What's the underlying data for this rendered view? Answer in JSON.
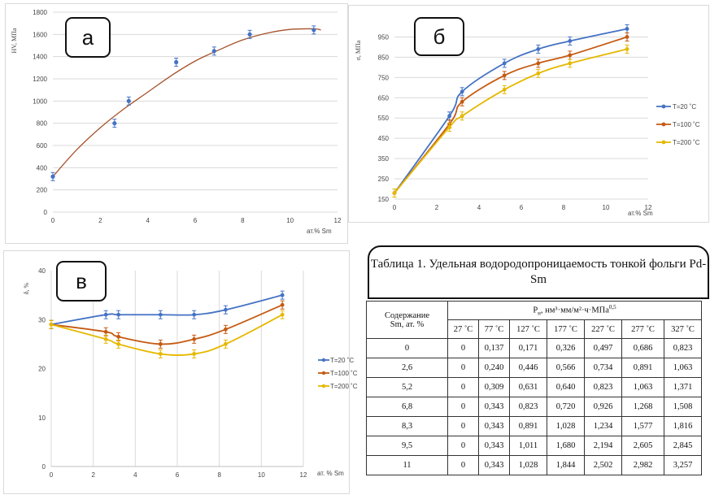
{
  "chart_data": [
    {
      "type": "scatter",
      "panel_tag": "а",
      "ylabel": "HV, МПа",
      "xlabel": "ат.% Sm",
      "xlim": [
        0,
        12
      ],
      "ylim": [
        0,
        1800
      ],
      "xticks": [
        0,
        2,
        4,
        6,
        8,
        10,
        12
      ],
      "yticks": [
        0,
        200,
        400,
        600,
        800,
        1000,
        1200,
        1400,
        1600,
        1800
      ],
      "points": [
        {
          "x": 0,
          "y": 320
        },
        {
          "x": 2.6,
          "y": 800
        },
        {
          "x": 3.2,
          "y": 1000
        },
        {
          "x": 5.2,
          "y": 1350
        },
        {
          "x": 6.8,
          "y": 1450
        },
        {
          "x": 8.3,
          "y": 1600
        },
        {
          "x": 11,
          "y": 1640
        }
      ],
      "trend": {
        "x": [
          0,
          1,
          2,
          3,
          4,
          5,
          6,
          7,
          8,
          9,
          10,
          11,
          11.3
        ],
        "y": [
          320,
          560,
          760,
          930,
          1080,
          1230,
          1360,
          1460,
          1550,
          1610,
          1645,
          1650,
          1640
        ]
      },
      "grid": "horizontal",
      "marker_color": "#4472c4",
      "line_color": "#a5522a"
    },
    {
      "type": "line",
      "panel_tag": "б",
      "ylabel": "σ, МПа",
      "xlabel": "ат.% Sm",
      "xlim": [
        0,
        12
      ],
      "ylim": [
        150,
        1000
      ],
      "xticks": [
        0,
        2,
        4,
        6,
        8,
        10,
        12
      ],
      "yticks": [
        150,
        250,
        350,
        450,
        550,
        650,
        750,
        850,
        950
      ],
      "x": [
        0,
        2.6,
        3.2,
        5.2,
        6.8,
        8.3,
        11
      ],
      "series": [
        {
          "name": "T=20 ˚C",
          "color": "#4472c4",
          "values": [
            180,
            560,
            680,
            820,
            890,
            930,
            990
          ]
        },
        {
          "name": "T=100 ˚C",
          "color": "#c55a11",
          "values": [
            180,
            520,
            630,
            760,
            820,
            860,
            950
          ]
        },
        {
          "name": "T=200 ˚C",
          "color": "#e6b800",
          "values": [
            180,
            505,
            560,
            690,
            770,
            820,
            890
          ]
        }
      ],
      "legend": "right",
      "grid": "horizontal"
    },
    {
      "type": "line",
      "panel_tag": "в",
      "ylabel": "δ, %",
      "xlabel": "ат. % Sm",
      "xlim": [
        0,
        12
      ],
      "ylim": [
        0,
        40
      ],
      "xticks": [
        0,
        2,
        4,
        6,
        8,
        10,
        12
      ],
      "yticks": [
        0,
        10,
        20,
        30,
        40
      ],
      "x": [
        0,
        2.6,
        3.2,
        5.2,
        6.8,
        8.3,
        11
      ],
      "series": [
        {
          "name": "T=20 ˚C",
          "color": "#4472c4",
          "values": [
            29,
            31,
            31,
            31,
            31,
            32,
            35
          ]
        },
        {
          "name": "T=100 ˚C",
          "color": "#c55a11",
          "values": [
            29,
            27.5,
            26.5,
            25,
            26,
            28,
            33
          ]
        },
        {
          "name": "T=200 ˚C",
          "color": "#e6b800",
          "values": [
            29,
            26,
            25,
            23,
            23,
            25,
            31
          ]
        }
      ],
      "legend": "right",
      "grid": "vertical"
    }
  ],
  "table": {
    "title": "Таблица 1. Удельная водородопроницаемость тонкой фольги Pd-Sm",
    "col0_header_line1": "Содержание",
    "col0_header_line2": "Sm, ат. %",
    "group_header": "P",
    "group_header_sub": "н",
    "group_header_rest": ", нм³·мм/м²·ч·МПа",
    "group_header_sup": "0,5",
    "temps": [
      "27 ˚C",
      "77 ˚C",
      "127 ˚C",
      "177 ˚C",
      "227 ˚C",
      "277 ˚C",
      "327 ˚C"
    ],
    "rows": [
      [
        "0",
        "0",
        "0,137",
        "0,171",
        "0,326",
        "0,497",
        "0,686",
        "0,823"
      ],
      [
        "2,6",
        "0",
        "0,240",
        "0,446",
        "0,566",
        "0,734",
        "0,891",
        "1,063"
      ],
      [
        "5,2",
        "0",
        "0,309",
        "0,631",
        "0,640",
        "0,823",
        "1,063",
        "1,371"
      ],
      [
        "6,8",
        "0",
        "0,343",
        "0,823",
        "0,720",
        "0,926",
        "1,268",
        "1,508"
      ],
      [
        "8,3",
        "0",
        "0,343",
        "0,891",
        "1,028",
        "1,234",
        "1,577",
        "1,816"
      ],
      [
        "9,5",
        "0",
        "0,343",
        "1,011",
        "1,680",
        "2,194",
        "2,605",
        "2,845"
      ],
      [
        "11",
        "0",
        "0,343",
        "1,028",
        "1,844",
        "2,502",
        "2,982",
        "3,257"
      ]
    ]
  }
}
